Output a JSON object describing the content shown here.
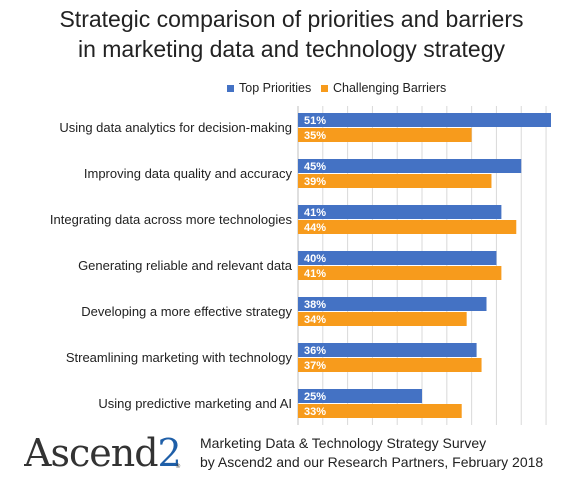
{
  "chart_data": {
    "type": "bar",
    "orientation": "horizontal",
    "title": [
      "Strategic comparison of priorities and barriers",
      "in marketing data and technology strategy"
    ],
    "categories": [
      "Using data analytics for decision-making",
      "Improving data quality and accuracy",
      "Integrating data across more technologies",
      "Generating reliable and relevant data",
      "Developing a more effective strategy",
      "Streamlining marketing with technology",
      "Using predictive marketing and AI"
    ],
    "series": [
      {
        "name": "Top Priorities",
        "color": "#4472c4",
        "values": [
          51,
          45,
          41,
          40,
          38,
          36,
          25
        ]
      },
      {
        "name": "Challenging Barriers",
        "color": "#f79b1c",
        "values": [
          35,
          39,
          44,
          41,
          34,
          37,
          33
        ]
      }
    ],
    "value_suffix": "%",
    "xlim": [
      0,
      51
    ],
    "grid": true,
    "legend_position": "top"
  },
  "branding": {
    "logo_text": "Ascend2"
  },
  "source": {
    "line1": "Marketing Data & Technology Strategy Survey",
    "line2": "by Ascend2 and our Research Partners, February 2018"
  }
}
